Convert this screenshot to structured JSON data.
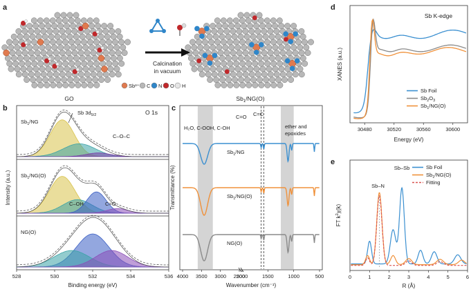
{
  "panel_letters": {
    "a": "a",
    "b": "b",
    "c": "c",
    "d": "d",
    "e": "e"
  },
  "schematic": {
    "left_label": "GO",
    "right_label": "Sb",
    "right_label_sub": "1",
    "right_label_tail": "/NG(O)",
    "arrow_line1": "Calcination",
    "arrow_line2": "in vacuum",
    "legend": [
      {
        "sym": "Sb³⁺",
        "name": "",
        "color": "#e07a4f"
      },
      {
        "sym": "C",
        "name": "",
        "color": "#b8b8b8"
      },
      {
        "sym": "N",
        "name": "",
        "color": "#2f86c9"
      },
      {
        "sym": "O",
        "name": "",
        "color": "#c0282b"
      },
      {
        "sym": "H",
        "name": "",
        "color": "#e6e6e6"
      }
    ],
    "colors": {
      "carbon": "#b8b8b8",
      "sb": "#e07a4f",
      "n": "#2f86c9",
      "o": "#c0282b",
      "h": "#eeeeee"
    }
  },
  "chart_data": [
    {
      "panel": "b",
      "type": "line",
      "title": "O 1s",
      "xlabel": "Binding energy (eV)",
      "ylabel": "Intensity (a.u.)",
      "xlim": [
        528,
        536
      ],
      "x_reversed": false,
      "xticks": [
        528,
        530,
        532,
        534,
        536
      ],
      "subpanels": [
        {
          "label_main": "Sb",
          "label_sub": "1",
          "label_tail": "/NG",
          "peaks": [
            {
              "center": 530.4,
              "fwhm": 1.5,
              "height": 1.0,
              "color": "#d8c24a"
            },
            {
              "center": 531.3,
              "fwhm": 2.0,
              "height": 0.35,
              "color": "#3aa3a6"
            },
            {
              "center": 532.3,
              "fwhm": 1.5,
              "height": 0.1,
              "color": "#7a3fa8"
            }
          ],
          "annotations": [
            "Sb 3d",
            "5/2",
            "C–O–C"
          ]
        },
        {
          "label_main": "Sb",
          "label_sub": "1",
          "label_tail": "/NG(O)",
          "peaks": [
            {
              "center": 530.4,
              "fwhm": 1.6,
              "height": 0.95,
              "color": "#d8c24a"
            },
            {
              "center": 531.2,
              "fwhm": 1.8,
              "height": 0.35,
              "color": "#3aa3a6"
            },
            {
              "center": 532.2,
              "fwhm": 1.2,
              "height": 0.55,
              "color": "#3b5fc4"
            },
            {
              "center": 533.3,
              "fwhm": 1.3,
              "height": 0.12,
              "color": "#8a4fb8"
            }
          ],
          "annotations": [
            "C–OH",
            "C=O"
          ]
        },
        {
          "label_main": "NG(O)",
          "label_sub": "",
          "label_tail": "",
          "peaks": [
            {
              "center": 532.0,
              "fwhm": 2.0,
              "height": 0.9,
              "color": "#3b5fc4"
            },
            {
              "center": 530.9,
              "fwhm": 2.2,
              "height": 0.45,
              "color": "#3aa3a6"
            },
            {
              "center": 533.0,
              "fwhm": 2.0,
              "height": 0.45,
              "color": "#8a4fb8"
            }
          ],
          "annotations": []
        }
      ]
    },
    {
      "panel": "c",
      "type": "line",
      "xlabel": "Wavenumber (cm⁻¹)",
      "ylabel": "Transmittance (%)",
      "xticks": [
        4000,
        3500,
        3000,
        2500,
        2000,
        1500,
        1000,
        500
      ],
      "axis_break": true,
      "shaded": [
        {
          "from": 3600,
          "to": 3200
        },
        {
          "from": 1250,
          "to": 1000
        }
      ],
      "dashed_lines": [
        1630,
        1580
      ],
      "annotations": [
        "H₂O, C-OOH, C-OH",
        "C=O",
        "C=C",
        "ether and",
        "epoxides"
      ],
      "series": [
        {
          "name_main": "Sb",
          "name_sub": "1",
          "name_tail": "/NG",
          "color": "#3a8fd0"
        },
        {
          "name_main": "Sb",
          "name_sub": "1",
          "name_tail": "/NG(O)",
          "color": "#f0913a"
        },
        {
          "name_main": "NG(O)",
          "name_sub": "",
          "name_tail": "",
          "color": "#8a8a8a"
        }
      ]
    },
    {
      "panel": "d",
      "type": "line",
      "title": "Sb K-edge",
      "xlabel": "Energy (eV)",
      "ylabel": "XANES (a.u.)",
      "xlim": [
        30460,
        30620
      ],
      "xticks": [
        30480,
        30520,
        30560,
        30600
      ],
      "series": [
        {
          "name_main": "Sb Foil",
          "name_sub": "",
          "name_tail": "",
          "color": "#3a8fd0"
        },
        {
          "name_main": "Sb",
          "name_sub": "2",
          "name_tail": "O",
          "name_extra": "3",
          "color": "#8a8a8a"
        },
        {
          "name_main": "Sb",
          "name_sub": "1",
          "name_tail": "/NG(O)",
          "color": "#f0913a"
        }
      ],
      "legend_position": "bottom-right"
    },
    {
      "panel": "e",
      "type": "line",
      "xlabel": "R (Å)",
      "ylabel": "FT k²χ(k)",
      "xlim": [
        0,
        6
      ],
      "xticks": [
        0,
        1,
        2,
        3,
        4,
        5,
        6
      ],
      "annotations": [
        "Sb–N",
        "Sb–Sb"
      ],
      "series": [
        {
          "name_main": "Sb Foil",
          "name_sub": "",
          "name_tail": "",
          "color": "#3a8fd0",
          "peak_R": 2.65
        },
        {
          "name_main": "Sb",
          "name_sub": "1",
          "name_tail": "/NG(O)",
          "color": "#f0913a",
          "peak_R": 1.5
        },
        {
          "name_main": "Fitting",
          "name_sub": "",
          "name_tail": "",
          "color": "#d9534f",
          "dashed": true,
          "peak_R": 1.5
        }
      ],
      "legend_position": "top-right"
    }
  ]
}
